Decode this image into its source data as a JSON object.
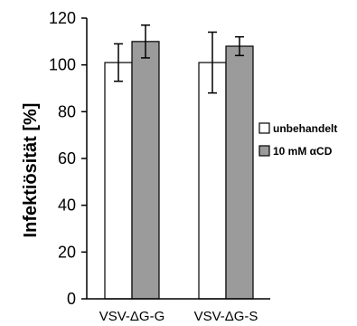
{
  "chart_data": {
    "type": "bar",
    "categories": [
      "VSV-ΔG-G",
      "VSV-ΔG-S"
    ],
    "series": [
      {
        "name": "unbehandelt",
        "values": [
          101,
          101
        ],
        "errors": [
          8,
          13
        ],
        "color": "#ffffff"
      },
      {
        "name": "10 mM αCD",
        "values": [
          110,
          108
        ],
        "errors": [
          7,
          4
        ],
        "color": "#9b9b9b"
      }
    ],
    "ylabel": "Infektiösität [%]",
    "xlabel": "",
    "ylim": [
      0,
      120
    ],
    "yticks": [
      0,
      20,
      40,
      60,
      80,
      100,
      120
    ],
    "grid": false,
    "legend_position": "right"
  }
}
